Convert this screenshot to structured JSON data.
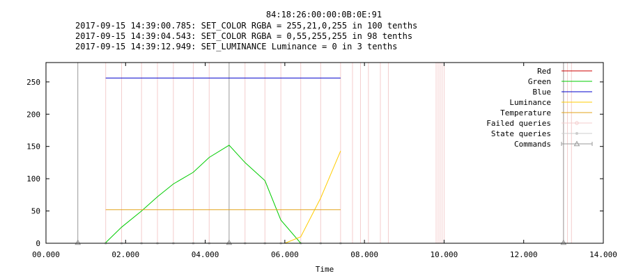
{
  "chart_data": {
    "type": "line",
    "title": "84:18:26:00:00:0B:0E:91",
    "subtitle_lines": [
      "2017-09-15 14:39:00.785: SET_COLOR RGBA = 255,21,0,255 in 100 tenths",
      "2017-09-15 14:39:04.543: SET_COLOR RGBA = 0,55,255,255 in 98 tenths",
      "2017-09-15 14:39:12.949: SET_LUMINANCE Luminance = 0 in 3 tenths"
    ],
    "xlabel": "Time",
    "ylabel": "",
    "xlim": [
      0,
      14
    ],
    "ylim": [
      0,
      280
    ],
    "x_ticks": [
      {
        "value": 0,
        "label": "00.000"
      },
      {
        "value": 2,
        "label": "02.000"
      },
      {
        "value": 4,
        "label": "04.000"
      },
      {
        "value": 6,
        "label": "06.000"
      },
      {
        "value": 8,
        "label": "08.000"
      },
      {
        "value": 10,
        "label": "10.000"
      },
      {
        "value": 12,
        "label": "12.000"
      },
      {
        "value": 14,
        "label": "14.000"
      }
    ],
    "y_ticks": [
      {
        "value": 0,
        "label": "0"
      },
      {
        "value": 50,
        "label": "50"
      },
      {
        "value": 100,
        "label": "100"
      },
      {
        "value": 150,
        "label": "150"
      },
      {
        "value": 200,
        "label": "200"
      },
      {
        "value": 250,
        "label": "250"
      }
    ],
    "legend_position": "top-right",
    "series": [
      {
        "name": "Red",
        "color": "#cc0000",
        "style": "line",
        "points": [
          [
            1.5,
            0
          ],
          [
            7.4,
            0
          ]
        ]
      },
      {
        "name": "Green",
        "color": "#00cc00",
        "style": "line",
        "points": [
          [
            1.5,
            1
          ],
          [
            1.9,
            25
          ],
          [
            2.4,
            50
          ],
          [
            2.8,
            72
          ],
          [
            3.2,
            92
          ],
          [
            3.7,
            110
          ],
          [
            4.1,
            133
          ],
          [
            4.6,
            152
          ],
          [
            5.0,
            125
          ],
          [
            5.5,
            97
          ],
          [
            5.9,
            36
          ],
          [
            6.4,
            0
          ],
          [
            7.4,
            0
          ]
        ]
      },
      {
        "name": "Blue",
        "color": "#0000cc",
        "style": "line",
        "points": [
          [
            1.5,
            256
          ],
          [
            7.4,
            256
          ]
        ]
      },
      {
        "name": "Luminance",
        "color": "#ffcc00",
        "style": "line",
        "points": [
          [
            1.5,
            0
          ],
          [
            6.0,
            0
          ],
          [
            6.4,
            10
          ],
          [
            6.9,
            70
          ],
          [
            7.4,
            143
          ]
        ]
      },
      {
        "name": "Temperature",
        "color": "#e3a31b",
        "style": "line",
        "points": [
          [
            1.5,
            52
          ],
          [
            7.4,
            52
          ]
        ]
      },
      {
        "name": "Failed queries",
        "color": "#f4cccc",
        "style": "vline",
        "x": [
          1.5,
          1.9,
          2.4,
          2.8,
          3.2,
          3.7,
          4.1,
          5.0,
          5.5,
          5.9,
          6.4,
          6.9,
          7.4,
          7.7,
          7.9,
          8.1,
          8.4,
          8.6,
          9.8,
          9.85,
          9.9,
          9.95,
          10.0,
          13.0,
          13.1,
          13.2
        ]
      },
      {
        "name": "State queries",
        "color": "#cccccc",
        "style": "points",
        "x": [
          1.5,
          1.9,
          2.4,
          2.8,
          3.2,
          3.7,
          4.1,
          4.6,
          5.0,
          5.5,
          5.9,
          6.4,
          6.9,
          7.4
        ]
      },
      {
        "name": "Commands",
        "color": "#999999",
        "style": "vline-triangle",
        "x": [
          0.8,
          4.6,
          13.0
        ]
      }
    ]
  }
}
